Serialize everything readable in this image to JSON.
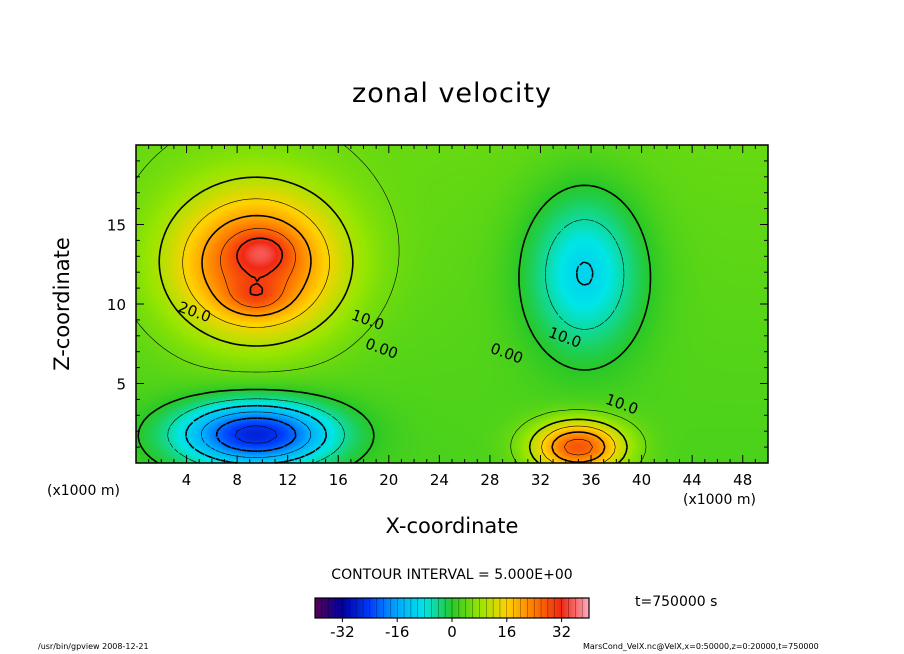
{
  "chart_data": {
    "type": "heatmap",
    "title": "zonal velocity",
    "xlabel": "X-coordinate",
    "ylabel": "Z-coordinate",
    "x_unit": "(x1000 m)",
    "xlim": [
      0,
      50
    ],
    "ylim": [
      0,
      20
    ],
    "x_ticks": [
      4,
      8,
      12,
      16,
      20,
      24,
      28,
      32,
      36,
      40,
      44,
      48
    ],
    "y_ticks": [
      5,
      10,
      15
    ],
    "contour_labels": [
      {
        "text": "20.0",
        "x": 4.5,
        "y": 9.2
      },
      {
        "text": "10.0",
        "x": 18.2,
        "y": 8.7
      },
      {
        "text": "0.00",
        "x": 19.3,
        "y": 6.9
      },
      {
        "text": "0.00",
        "x": 29.2,
        "y": 6.6
      },
      {
        "text": "10.0",
        "x": 33.8,
        "y": 7.6
      },
      {
        "text": "10.0",
        "x": 38.3,
        "y": 3.4
      }
    ],
    "field_features": [
      {
        "name": "upper jet",
        "x": 9.5,
        "y": 12.5,
        "value": 25,
        "sx": 6.5,
        "sy": 4.5
      },
      {
        "name": "upper jet core",
        "x": 10,
        "y": 13.3,
        "value": 7,
        "sx": 2.2,
        "sy": 1.2
      },
      {
        "name": "upper jet core 2",
        "x": 9.5,
        "y": 10.4,
        "value": 6,
        "sx": 2.2,
        "sy": 1.0
      },
      {
        "name": "lower westward flow",
        "x": 9.5,
        "y": 1.8,
        "value": -30,
        "sx": 6.0,
        "sy": 2.0
      },
      {
        "name": "eastern westward flow",
        "x": 35.5,
        "y": 12.0,
        "value": -14,
        "sx": 4.5,
        "sy": 5.0
      },
      {
        "name": "surface jet",
        "x": 35.0,
        "y": 1.0,
        "value": 25,
        "sx": 3.5,
        "sy": 1.6
      }
    ],
    "contour_interval": "CONTOUR INTERVAL = 5.000E+00",
    "colorbar": {
      "min": -40,
      "max": 40,
      "ticks": [
        -32,
        -16,
        0,
        16,
        32
      ]
    }
  },
  "time_label": "t=750000 s",
  "footer": {
    "left": "/usr/bin/gpview   2008-12-21",
    "right": "MarsCond_VelX.nc@VelX,x=0:50000,z=0:20000,t=750000"
  }
}
